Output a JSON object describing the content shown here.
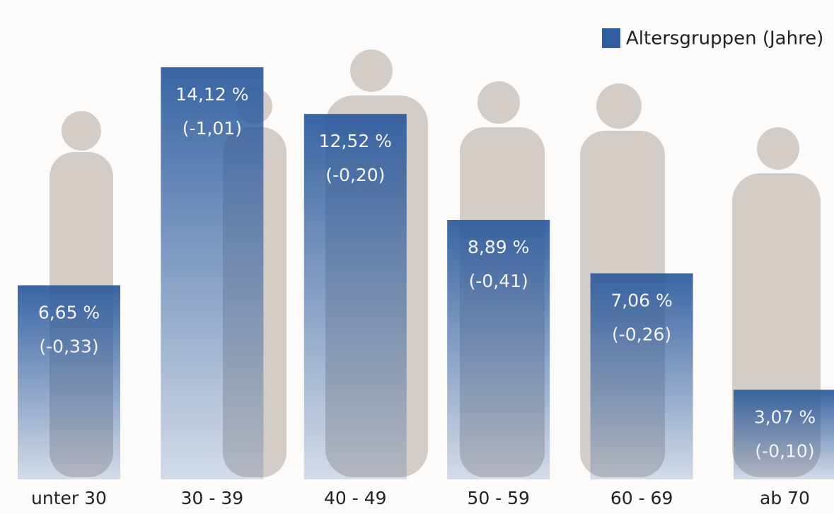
{
  "chart_data": {
    "type": "bar",
    "categories": [
      "unter 30",
      "30 - 39",
      "40 - 49",
      "50 - 59",
      "60 - 69",
      "ab 70"
    ],
    "series": [
      {
        "name": "Altersgruppen (Jahre)",
        "color": "#2f5d9e",
        "values": [
          6.65,
          14.12,
          12.52,
          8.89,
          7.06,
          3.07
        ],
        "value_labels": [
          "6,65 %",
          "14,12 %",
          "12,52 %",
          "8,89 %",
          "7,06 %",
          "3,07 %"
        ],
        "change_labels": [
          "(-0,33)",
          "(-1,01)",
          "(-0,20)",
          "(-0,41)",
          "(-0,26)",
          "(-0,10)"
        ]
      }
    ],
    "ylim": [
      0,
      16.4
    ],
    "legend": "top-right"
  }
}
